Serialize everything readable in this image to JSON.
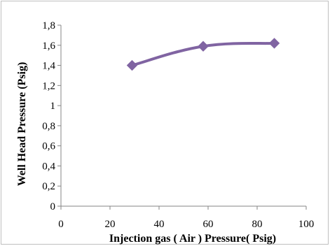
{
  "chart_data": {
    "type": "line",
    "title": "",
    "xlabel": "Injection gas ( Air ) Pressure( Psig)",
    "ylabel": "Well Head Pressure (Psig)",
    "xlim": [
      0,
      100
    ],
    "ylim": [
      0,
      1.8
    ],
    "x_ticks": [
      "0",
      "20",
      "40",
      "60",
      "80",
      "100"
    ],
    "y_ticks": [
      "0",
      "0,2",
      "0,4",
      "0,6",
      "0,8",
      "1",
      "1,2",
      "1,4",
      "1,6",
      "1,8"
    ],
    "grid": false,
    "legend": "none",
    "series": [
      {
        "x": [
          29,
          58,
          87
        ],
        "y": [
          1.4,
          1.59,
          1.62
        ],
        "color": "#8064a2",
        "marker": "diamond"
      }
    ]
  }
}
